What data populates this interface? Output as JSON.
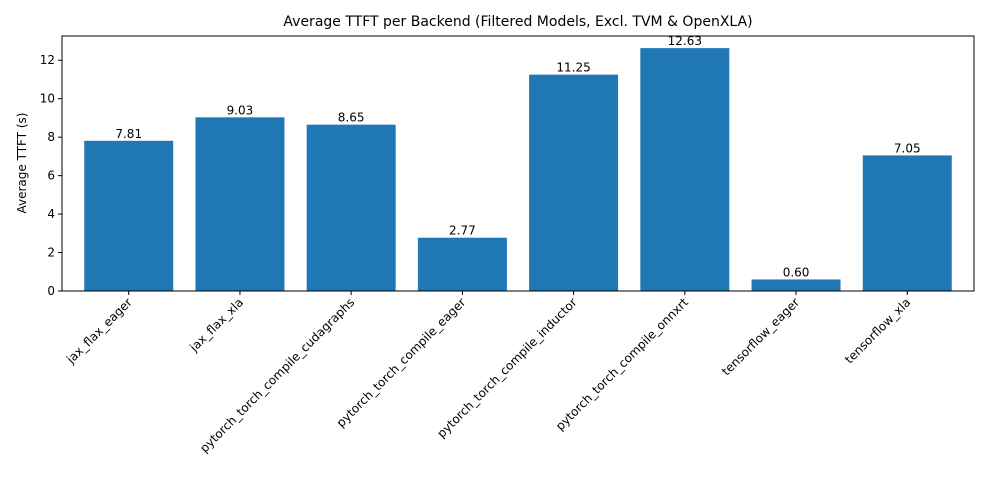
{
  "chart_data": {
    "type": "bar",
    "title": "Average TTFT per Backend (Filtered Models, Excl. TVM & OpenXLA)",
    "xlabel": "",
    "ylabel": "Average TTFT (s)",
    "categories": [
      "jax_flax_eager",
      "jax_flax_xla",
      "pytorch_torch_compile_cudagraphs",
      "pytorch_torch_compile_eager",
      "pytorch_torch_compile_inductor",
      "pytorch_torch_compile_onnxrt",
      "tensorflow_eager",
      "tensorflow_xla"
    ],
    "values": [
      7.81,
      9.03,
      8.65,
      2.77,
      11.25,
      12.63,
      0.6,
      7.05
    ],
    "value_labels": [
      "7.81",
      "9.03",
      "8.65",
      "2.77",
      "11.25",
      "12.63",
      "0.60",
      "7.05"
    ],
    "ylim": [
      0,
      13.26
    ],
    "yticks": [
      0,
      2,
      4,
      6,
      8,
      10,
      12
    ],
    "grid": false,
    "bar_color": "#1f77b4"
  }
}
